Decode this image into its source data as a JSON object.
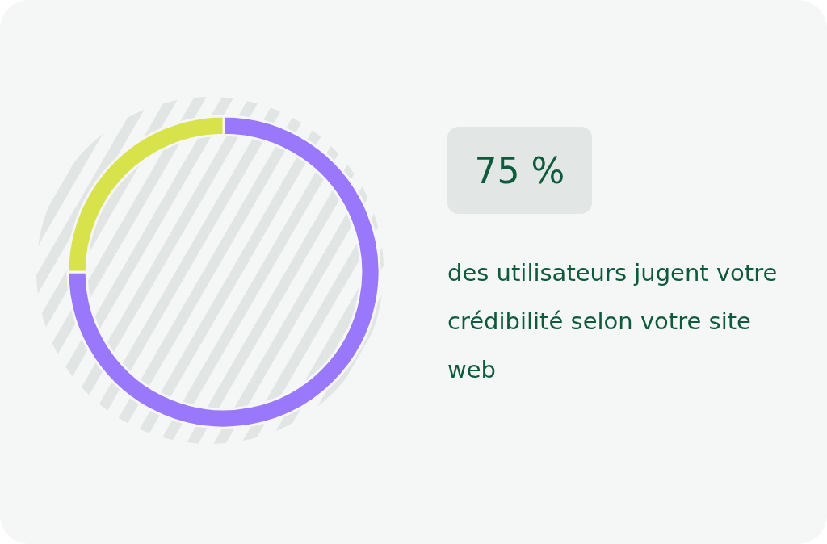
{
  "chart_data": {
    "type": "donut",
    "categories": [
      null,
      null
    ],
    "values": [
      75,
      25
    ],
    "colors": [
      "#9a78fb",
      "#d8e24b"
    ],
    "legend": false,
    "annotations": [
      "75 %",
      "des utilisateurs jugent votre crédibilité selon votre site web"
    ]
  }
}
